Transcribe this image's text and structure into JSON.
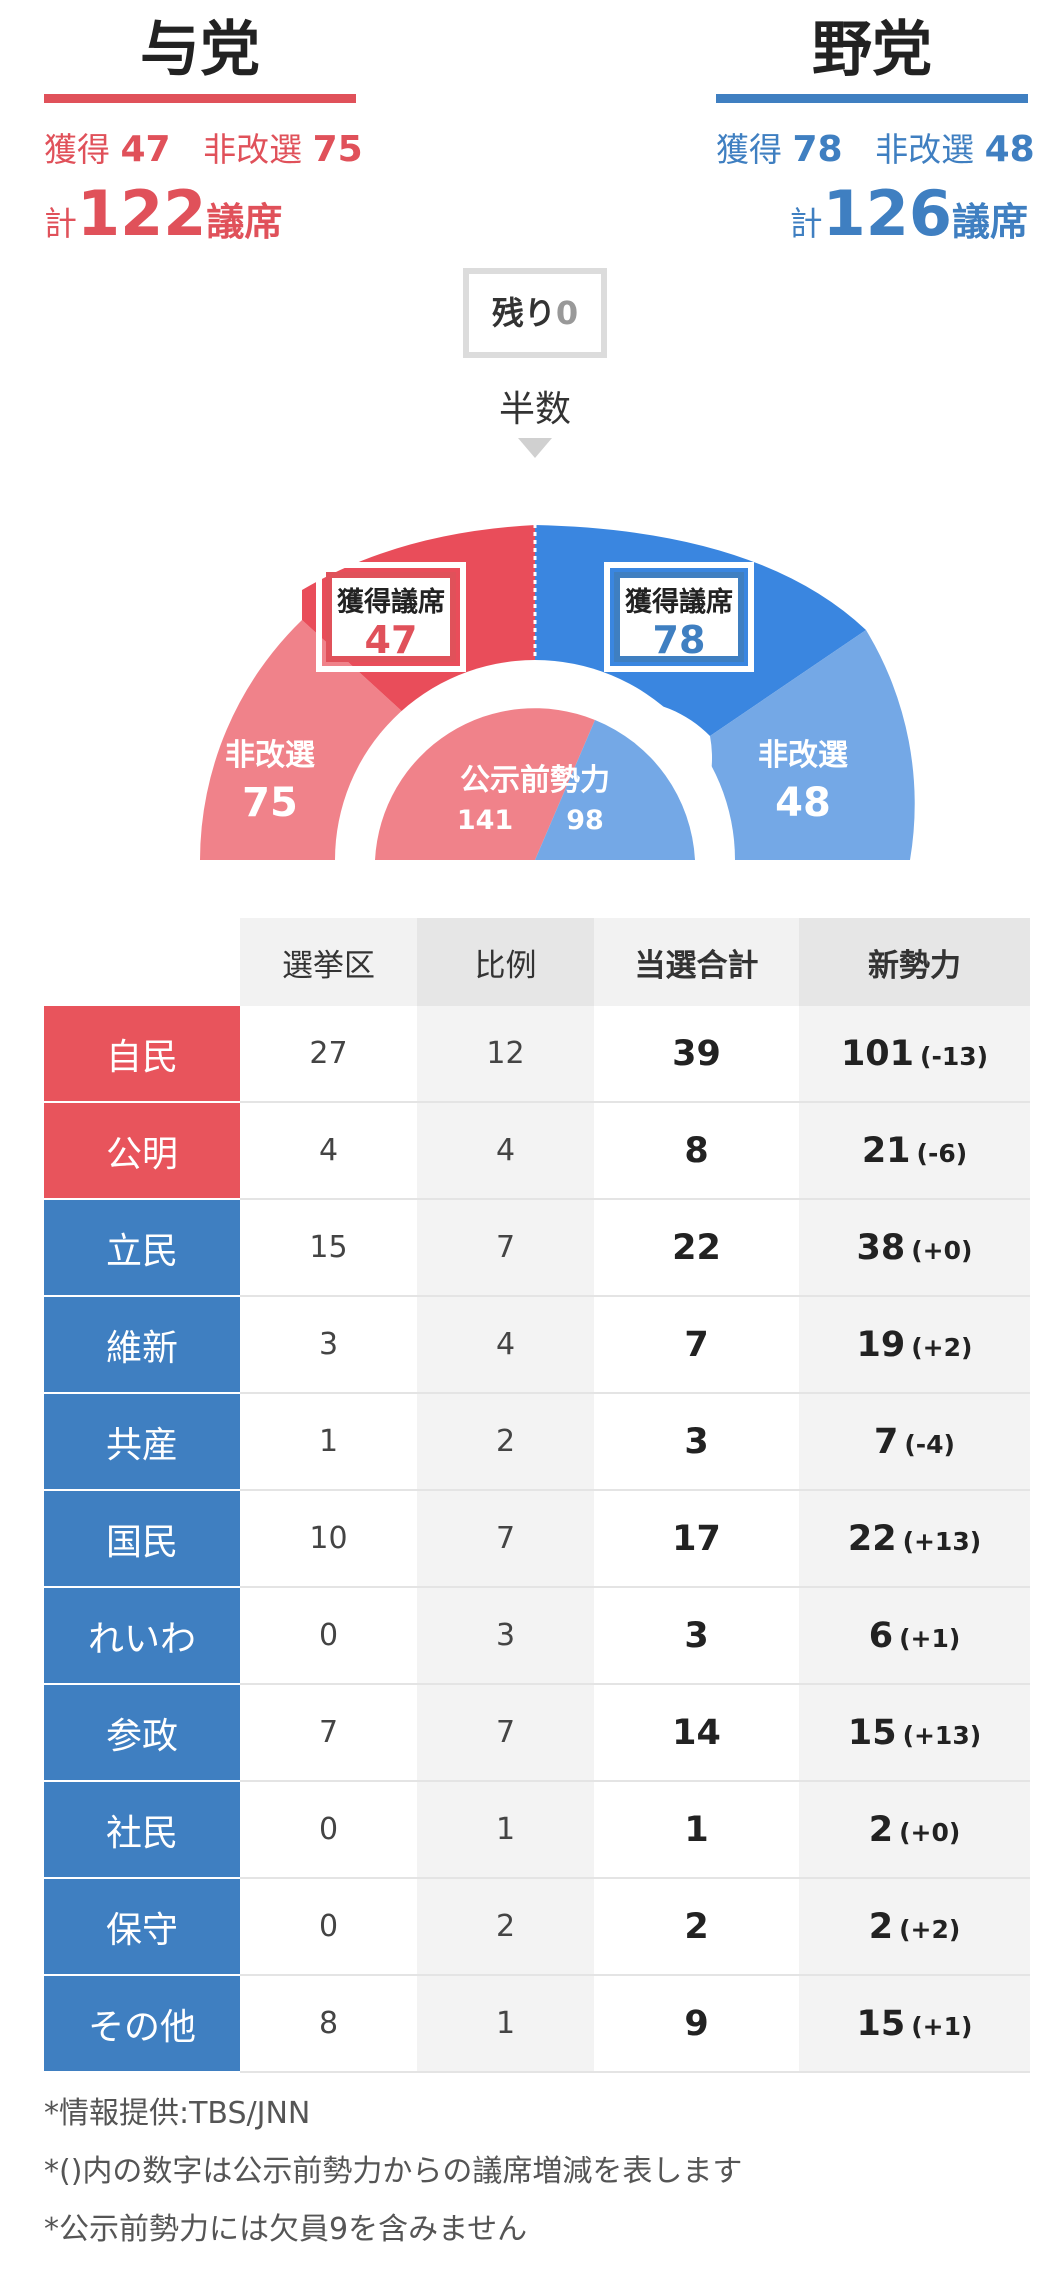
{
  "ruling": {
    "title": "与党",
    "won_label": "獲得",
    "won": "47",
    "not_up_label": "非改選",
    "not_up": "75",
    "total_prefix": "計",
    "total": "122",
    "total_unit": "議席"
  },
  "opposition": {
    "title": "野党",
    "won_label": "獲得",
    "won": "78",
    "not_up_label": "非改選",
    "not_up": "48",
    "total_prefix": "計",
    "total": "126",
    "total_unit": "議席"
  },
  "remaining": {
    "label": "残り",
    "value": "0"
  },
  "half_label": "半数",
  "chart": {
    "seats_won_label": "獲得議席",
    "not_up_label": "非改選",
    "pre_election_label": "公示前勢力",
    "ruling_won": "47",
    "opposition_won": "78",
    "ruling_not_up": "75",
    "opposition_not_up": "48",
    "ruling_pre": "141",
    "opposition_pre": "98"
  },
  "colors": {
    "ruling": "#e0515a",
    "ruling_light": "#f0828a",
    "opposition": "#3f7fc1",
    "opposition_bright": "#3a86e0",
    "opposition_light": "#74a8e6"
  },
  "table": {
    "headers": [
      "",
      "選挙区",
      "比例",
      "当選合計",
      "新勢力"
    ],
    "rows": [
      {
        "party": "自民",
        "bloc": "ruling",
        "district": "27",
        "pr": "12",
        "total": "39",
        "new": "101",
        "diff": "(-13)"
      },
      {
        "party": "公明",
        "bloc": "ruling",
        "district": "4",
        "pr": "4",
        "total": "8",
        "new": "21",
        "diff": "(-6)"
      },
      {
        "party": "立民",
        "bloc": "opposition",
        "district": "15",
        "pr": "7",
        "total": "22",
        "new": "38",
        "diff": "(+0)"
      },
      {
        "party": "維新",
        "bloc": "opposition",
        "district": "3",
        "pr": "4",
        "total": "7",
        "new": "19",
        "diff": "(+2)"
      },
      {
        "party": "共産",
        "bloc": "opposition",
        "district": "1",
        "pr": "2",
        "total": "3",
        "new": "7",
        "diff": "(-4)"
      },
      {
        "party": "国民",
        "bloc": "opposition",
        "district": "10",
        "pr": "7",
        "total": "17",
        "new": "22",
        "diff": "(+13)"
      },
      {
        "party": "れいわ",
        "bloc": "opposition",
        "district": "0",
        "pr": "3",
        "total": "3",
        "new": "6",
        "diff": "(+1)"
      },
      {
        "party": "参政",
        "bloc": "opposition",
        "district": "7",
        "pr": "7",
        "total": "14",
        "new": "15",
        "diff": "(+13)"
      },
      {
        "party": "社民",
        "bloc": "opposition",
        "district": "0",
        "pr": "1",
        "total": "1",
        "new": "2",
        "diff": "(+0)"
      },
      {
        "party": "保守",
        "bloc": "opposition",
        "district": "0",
        "pr": "2",
        "total": "2",
        "new": "2",
        "diff": "(+2)"
      },
      {
        "party": "その他",
        "bloc": "opposition",
        "district": "8",
        "pr": "1",
        "total": "9",
        "new": "15",
        "diff": "(+1)"
      }
    ]
  },
  "notes": [
    "*情報提供:TBS/JNN",
    "*()内の数字は公示前勢力からの議席増減を表します",
    "*公示前勢力には欠員9を含みません"
  ]
}
